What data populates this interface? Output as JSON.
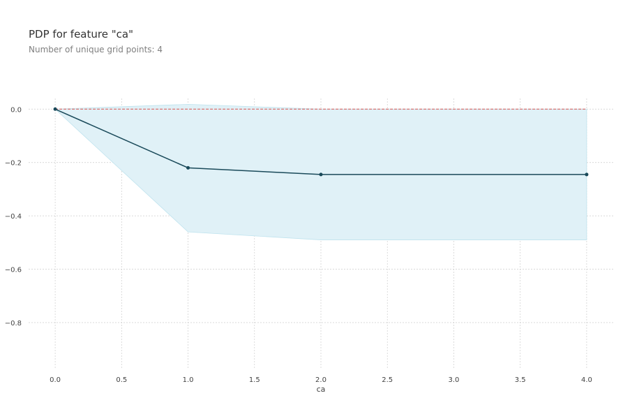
{
  "chart_data": {
    "type": "line",
    "title": "PDP for feature \"ca\"",
    "subtitle": "Number of unique grid points: 4",
    "xlabel": "ca",
    "ylabel": "",
    "xlim": [
      -0.2,
      4.2
    ],
    "ylim": [
      -0.97,
      0.04
    ],
    "x_ticks": [
      0.0,
      0.5,
      1.0,
      1.5,
      2.0,
      2.5,
      3.0,
      3.5,
      4.0
    ],
    "x_tick_labels": [
      "0.0",
      "0.5",
      "1.0",
      "1.5",
      "2.0",
      "2.5",
      "3.0",
      "3.5",
      "4.0"
    ],
    "y_ticks": [
      0.0,
      -0.2,
      -0.4,
      -0.6,
      -0.8
    ],
    "y_tick_labels": [
      "0.0",
      "−0.2",
      "−0.4",
      "−0.6",
      "−0.8"
    ],
    "grid": true,
    "series": [
      {
        "x": [
          0,
          1,
          2,
          4
        ],
        "values": [
          0.0,
          -0.22,
          -0.245,
          -0.245
        ],
        "upper": [
          0.0,
          0.018,
          0.0,
          0.0
        ],
        "lower": [
          0.0,
          -0.46,
          -0.49,
          -0.49
        ]
      }
    ],
    "reference_line": 0.0,
    "colors": {
      "line": "#1a4a5a",
      "band": "#e0f1f7",
      "band_edge": "#bfe3ee",
      "reference": "#d9534f",
      "grid": "#cccccc"
    }
  }
}
